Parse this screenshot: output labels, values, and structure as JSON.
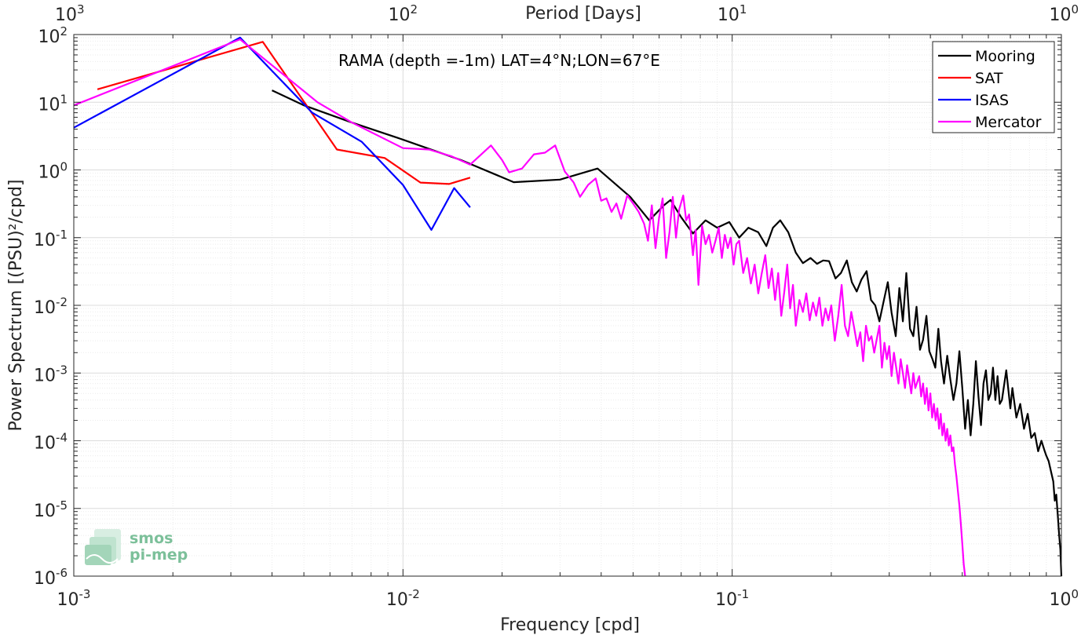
{
  "chart_data": {
    "type": "line",
    "scale": "log-log",
    "title": "RAMA (depth =-1m) LAT=4°N;LON=67°E",
    "xlabel": "Frequency [cpd]",
    "ylabel": "Power Spectrum [(PSU)²/cpd]",
    "top_xlabel": "Period [Days]",
    "xlim": [
      0.001,
      1
    ],
    "ylim": [
      1e-06,
      100
    ],
    "x_ticks": [
      {
        "value": 0.001,
        "base": "10",
        "exp": "-3"
      },
      {
        "value": 0.01,
        "base": "10",
        "exp": "-2"
      },
      {
        "value": 0.1,
        "base": "10",
        "exp": "-1"
      },
      {
        "value": 1,
        "base": "10",
        "exp": "0"
      }
    ],
    "top_ticks": [
      {
        "value": 0.001,
        "base": "10",
        "exp": "3"
      },
      {
        "value": 0.01,
        "base": "10",
        "exp": "2"
      },
      {
        "value": 0.1,
        "base": "10",
        "exp": "1"
      },
      {
        "value": 1,
        "base": "10",
        "exp": "0"
      }
    ],
    "y_ticks": [
      {
        "value": 100,
        "base": "10",
        "exp": "2"
      },
      {
        "value": 10,
        "base": "10",
        "exp": "1"
      },
      {
        "value": 1,
        "base": "10",
        "exp": "0"
      },
      {
        "value": 0.1,
        "base": "10",
        "exp": "-1"
      },
      {
        "value": 0.01,
        "base": "10",
        "exp": "-2"
      },
      {
        "value": 0.001,
        "base": "10",
        "exp": "-3"
      },
      {
        "value": 0.0001,
        "base": "10",
        "exp": "-4"
      },
      {
        "value": 1e-05,
        "base": "10",
        "exp": "-5"
      },
      {
        "value": 1e-06,
        "base": "10",
        "exp": "-6"
      }
    ],
    "grid": true,
    "legend_position": "top-right",
    "series": [
      {
        "name": "Mooring",
        "color": "#000000",
        "points": [
          [
            0.004,
            15.0
          ],
          [
            0.005,
            9.0
          ],
          [
            0.007,
            5.0
          ],
          [
            0.01,
            2.8
          ],
          [
            0.015,
            1.4
          ],
          [
            0.0217,
            0.66
          ],
          [
            0.03,
            0.72
          ],
          [
            0.039,
            1.05
          ],
          [
            0.049,
            0.4
          ],
          [
            0.056,
            0.18
          ],
          [
            0.062,
            0.3
          ],
          [
            0.065,
            0.36
          ],
          [
            0.07,
            0.2
          ],
          [
            0.076,
            0.115
          ],
          [
            0.083,
            0.18
          ],
          [
            0.09,
            0.14
          ],
          [
            0.098,
            0.17
          ],
          [
            0.105,
            0.1
          ],
          [
            0.112,
            0.14
          ],
          [
            0.12,
            0.12
          ],
          [
            0.127,
            0.075
          ],
          [
            0.133,
            0.14
          ],
          [
            0.14,
            0.18
          ],
          [
            0.148,
            0.12
          ],
          [
            0.156,
            0.06
          ],
          [
            0.164,
            0.042
          ],
          [
            0.173,
            0.05
          ],
          [
            0.181,
            0.041
          ],
          [
            0.189,
            0.046
          ],
          [
            0.197,
            0.045
          ],
          [
            0.206,
            0.025
          ],
          [
            0.214,
            0.03
          ],
          [
            0.223,
            0.046
          ],
          [
            0.231,
            0.022
          ],
          [
            0.239,
            0.016
          ],
          [
            0.247,
            0.024
          ],
          [
            0.256,
            0.032
          ],
          [
            0.264,
            0.012
          ],
          [
            0.272,
            0.01
          ],
          [
            0.28,
            0.0058
          ],
          [
            0.288,
            0.011
          ],
          [
            0.297,
            0.022
          ],
          [
            0.305,
            0.0078
          ],
          [
            0.314,
            0.0035
          ],
          [
            0.322,
            0.018
          ],
          [
            0.33,
            0.0058
          ],
          [
            0.338,
            0.03
          ],
          [
            0.347,
            0.0045
          ],
          [
            0.355,
            0.0035
          ],
          [
            0.363,
            0.0095
          ],
          [
            0.372,
            0.0022
          ],
          [
            0.38,
            0.0031
          ],
          [
            0.389,
            0.007
          ],
          [
            0.397,
            0.0021
          ],
          [
            0.406,
            0.0016
          ],
          [
            0.414,
            0.0012
          ],
          [
            0.423,
            0.0045
          ],
          [
            0.431,
            0.0015
          ],
          [
            0.44,
            0.0007
          ],
          [
            0.45,
            0.0018
          ],
          [
            0.46,
            0.0008
          ],
          [
            0.47,
            0.0004
          ],
          [
            0.48,
            0.0007
          ],
          [
            0.49,
            0.0021
          ],
          [
            0.5,
            0.0006
          ],
          [
            0.51,
            0.00015
          ],
          [
            0.52,
            0.0004
          ],
          [
            0.53,
            0.00012
          ],
          [
            0.54,
            0.00035
          ],
          [
            0.55,
            0.0015
          ],
          [
            0.56,
            0.00045
          ],
          [
            0.57,
            0.00017
          ],
          [
            0.58,
            0.0007
          ],
          [
            0.59,
            0.0011
          ],
          [
            0.6,
            0.0004
          ],
          [
            0.61,
            0.0005
          ],
          [
            0.62,
            0.0012
          ],
          [
            0.63,
            0.0004
          ],
          [
            0.64,
            0.0009
          ],
          [
            0.65,
            0.00035
          ],
          [
            0.66,
            0.0004
          ],
          [
            0.68,
            0.0011
          ],
          [
            0.7,
            0.0003
          ],
          [
            0.71,
            0.0006
          ],
          [
            0.73,
            0.00022
          ],
          [
            0.75,
            0.00035
          ],
          [
            0.77,
            0.00015
          ],
          [
            0.79,
            0.00025
          ],
          [
            0.81,
            0.00011
          ],
          [
            0.83,
            0.00013
          ],
          [
            0.85,
            7e-05
          ],
          [
            0.87,
            0.0001
          ],
          [
            0.89,
            7e-05
          ],
          [
            0.9,
            6e-05
          ],
          [
            0.915,
            5e-05
          ],
          [
            0.93,
            3.5e-05
          ],
          [
            0.945,
            2.5e-05
          ],
          [
            0.955,
            1.3e-05
          ],
          [
            0.965,
            1.6e-05
          ],
          [
            0.975,
            8e-06
          ],
          [
            0.985,
            4e-06
          ],
          [
            0.993,
            2.5e-06
          ],
          [
            1.0,
            1e-06
          ]
        ]
      },
      {
        "name": "SAT",
        "color": "#ff0000",
        "points": [
          [
            0.00118,
            15.5
          ],
          [
            0.00375,
            78
          ],
          [
            0.0063,
            2.0
          ],
          [
            0.0088,
            1.5
          ],
          [
            0.0113,
            0.65
          ],
          [
            0.0138,
            0.62
          ],
          [
            0.016,
            0.77
          ]
        ]
      },
      {
        "name": "ISAS",
        "color": "#0000ff",
        "points": [
          [
            0.001,
            4.2
          ],
          [
            0.0032,
            90
          ],
          [
            0.0053,
            7.0
          ],
          [
            0.0075,
            2.6
          ],
          [
            0.01,
            0.6
          ],
          [
            0.0122,
            0.13
          ],
          [
            0.0143,
            0.54
          ],
          [
            0.016,
            0.28
          ]
        ]
      },
      {
        "name": "Mercator",
        "color": "#ff00ff",
        "points": [
          [
            0.001,
            9.0
          ],
          [
            0.0032,
            85
          ],
          [
            0.0055,
            10
          ],
          [
            0.007,
            5.0
          ],
          [
            0.01,
            2.1
          ],
          [
            0.012,
            2.0
          ],
          [
            0.014,
            1.6
          ],
          [
            0.016,
            1.2
          ],
          [
            0.0185,
            2.3
          ],
          [
            0.02,
            1.4
          ],
          [
            0.021,
            0.92
          ],
          [
            0.023,
            1.05
          ],
          [
            0.025,
            1.7
          ],
          [
            0.027,
            1.8
          ],
          [
            0.029,
            2.3
          ],
          [
            0.031,
            0.95
          ],
          [
            0.033,
            0.65
          ],
          [
            0.0345,
            0.4
          ],
          [
            0.0365,
            0.6
          ],
          [
            0.0385,
            0.75
          ],
          [
            0.04,
            0.35
          ],
          [
            0.0415,
            0.38
          ],
          [
            0.043,
            0.24
          ],
          [
            0.0445,
            0.32
          ],
          [
            0.046,
            0.19
          ],
          [
            0.048,
            0.42
          ],
          [
            0.05,
            0.32
          ],
          [
            0.052,
            0.24
          ],
          [
            0.054,
            0.16
          ],
          [
            0.0555,
            0.09
          ],
          [
            0.057,
            0.3
          ],
          [
            0.0585,
            0.07
          ],
          [
            0.06,
            0.2
          ],
          [
            0.0615,
            0.38
          ],
          [
            0.063,
            0.05
          ],
          [
            0.0645,
            0.12
          ],
          [
            0.066,
            0.4
          ],
          [
            0.0675,
            0.1
          ],
          [
            0.069,
            0.26
          ],
          [
            0.071,
            0.42
          ],
          [
            0.0725,
            0.18
          ],
          [
            0.074,
            0.22
          ],
          [
            0.076,
            0.055
          ],
          [
            0.0775,
            0.13
          ],
          [
            0.079,
            0.02
          ],
          [
            0.081,
            0.15
          ],
          [
            0.083,
            0.08
          ],
          [
            0.085,
            0.11
          ],
          [
            0.087,
            0.06
          ],
          [
            0.089,
            0.09
          ],
          [
            0.091,
            0.14
          ],
          [
            0.093,
            0.05
          ],
          [
            0.095,
            0.11
          ],
          [
            0.097,
            0.07
          ],
          [
            0.099,
            0.1
          ],
          [
            0.101,
            0.04
          ],
          [
            0.103,
            0.08
          ],
          [
            0.105,
            0.09
          ],
          [
            0.108,
            0.03
          ],
          [
            0.111,
            0.05
          ],
          [
            0.114,
            0.021
          ],
          [
            0.117,
            0.04
          ],
          [
            0.12,
            0.015
          ],
          [
            0.123,
            0.03
          ],
          [
            0.126,
            0.055
          ],
          [
            0.129,
            0.018
          ],
          [
            0.132,
            0.035
          ],
          [
            0.135,
            0.012
          ],
          [
            0.138,
            0.03
          ],
          [
            0.141,
            0.007
          ],
          [
            0.144,
            0.016
          ],
          [
            0.147,
            0.04
          ],
          [
            0.15,
            0.009
          ],
          [
            0.153,
            0.02
          ],
          [
            0.156,
            0.005
          ],
          [
            0.16,
            0.012
          ],
          [
            0.164,
            0.008
          ],
          [
            0.168,
            0.015
          ],
          [
            0.172,
            0.006
          ],
          [
            0.176,
            0.011
          ],
          [
            0.18,
            0.007
          ],
          [
            0.184,
            0.013
          ],
          [
            0.188,
            0.005
          ],
          [
            0.192,
            0.009
          ],
          [
            0.196,
            0.006
          ],
          [
            0.2,
            0.01
          ],
          [
            0.205,
            0.003
          ],
          [
            0.21,
            0.007
          ],
          [
            0.215,
            0.02
          ],
          [
            0.22,
            0.005
          ],
          [
            0.225,
            0.0035
          ],
          [
            0.23,
            0.008
          ],
          [
            0.235,
            0.0045
          ],
          [
            0.24,
            0.0025
          ],
          [
            0.245,
            0.004
          ],
          [
            0.25,
            0.0015
          ],
          [
            0.255,
            0.005
          ],
          [
            0.26,
            0.003
          ],
          [
            0.265,
            0.0035
          ],
          [
            0.27,
            0.002
          ],
          [
            0.275,
            0.0032
          ],
          [
            0.28,
            0.005
          ],
          [
            0.285,
            0.0012
          ],
          [
            0.29,
            0.0028
          ],
          [
            0.295,
            0.0016
          ],
          [
            0.3,
            0.0025
          ],
          [
            0.305,
            0.0009
          ],
          [
            0.31,
            0.002
          ],
          [
            0.315,
            0.0012
          ],
          [
            0.32,
            0.0007
          ],
          [
            0.325,
            0.0016
          ],
          [
            0.33,
            0.001
          ],
          [
            0.335,
            0.0006
          ],
          [
            0.34,
            0.0013
          ],
          [
            0.345,
            0.0008
          ],
          [
            0.35,
            0.0005
          ],
          [
            0.355,
            0.001
          ],
          [
            0.36,
            0.0006
          ],
          [
            0.37,
            0.0009
          ],
          [
            0.375,
            0.00045
          ],
          [
            0.38,
            0.0007
          ],
          [
            0.385,
            0.00035
          ],
          [
            0.39,
            0.0006
          ],
          [
            0.395,
            0.00028
          ],
          [
            0.4,
            0.0005
          ],
          [
            0.405,
            0.00022
          ],
          [
            0.41,
            0.00035
          ],
          [
            0.415,
            0.0002
          ],
          [
            0.42,
            0.0003
          ],
          [
            0.425,
            0.00015
          ],
          [
            0.43,
            0.00025
          ],
          [
            0.435,
            0.00012
          ],
          [
            0.44,
            0.00018
          ],
          [
            0.445,
            0.0001
          ],
          [
            0.45,
            0.00015
          ],
          [
            0.455,
            8.5e-05
          ],
          [
            0.46,
            0.00012
          ],
          [
            0.465,
            7e-05
          ],
          [
            0.47,
            8e-05
          ],
          [
            0.475,
            4.5e-05
          ],
          [
            0.48,
            3e-05
          ],
          [
            0.485,
            1.8e-05
          ],
          [
            0.49,
            1.1e-05
          ],
          [
            0.495,
            6e-06
          ],
          [
            0.5,
            3e-06
          ],
          [
            0.505,
            1.5e-06
          ],
          [
            0.51,
            1e-06
          ]
        ]
      }
    ]
  },
  "logo": {
    "line1": "smos",
    "line2": "pi-mep"
  }
}
